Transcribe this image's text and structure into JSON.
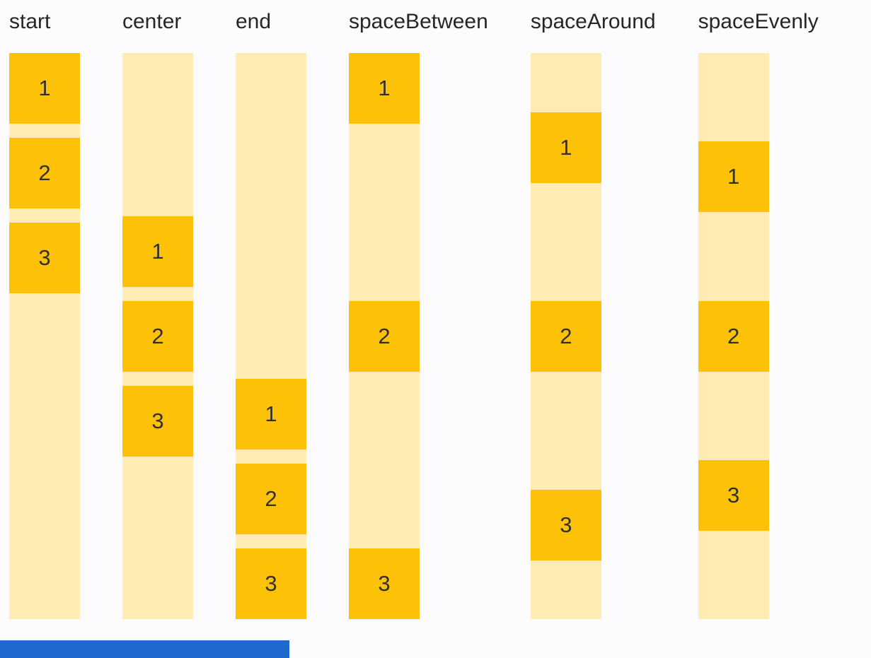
{
  "diagram": {
    "description_labels": [
      "start",
      "center",
      "end",
      "spaceBetween",
      "spaceAround",
      "spaceEvenly"
    ]
  },
  "colors": {
    "background": "#FCFCFF",
    "track": "#FFEBB3",
    "box": "#FDC107",
    "label_text": "#262626",
    "box_text": "#303030",
    "progress_bar": "#1E68D0"
  },
  "columns": [
    {
      "label": "start",
      "justify": "flex-start",
      "items": [
        "1",
        "2",
        "3"
      ]
    },
    {
      "label": "center",
      "justify": "center",
      "items": [
        "1",
        "2",
        "3"
      ]
    },
    {
      "label": "end",
      "justify": "flex-end",
      "items": [
        "1",
        "2",
        "3"
      ]
    },
    {
      "label": "spaceBetween",
      "justify": "space-between",
      "items": [
        "1",
        "2",
        "3"
      ]
    },
    {
      "label": "spaceAround",
      "justify": "space-around",
      "items": [
        "1",
        "2",
        "3"
      ]
    },
    {
      "label": "spaceEvenly",
      "justify": "space-evenly",
      "items": [
        "1",
        "2",
        "3"
      ]
    }
  ]
}
